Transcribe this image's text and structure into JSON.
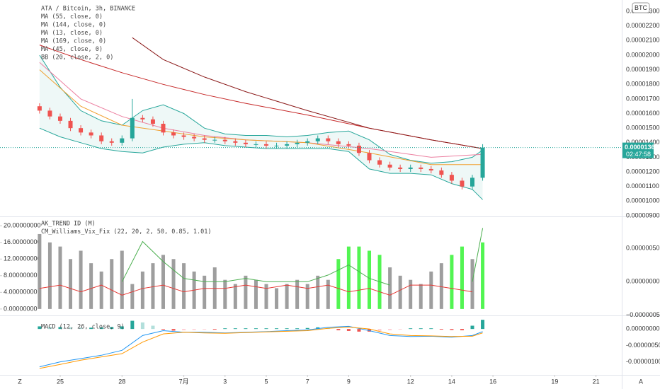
{
  "chart_data": [
    {
      "type": "candlestick",
      "legend": [
        "ATA / Bitcoin, 3h, BINANCE",
        "MA (55, close, 0)",
        "MA (144, close, 0)",
        "MA (13, close, 0)",
        "MA (169, close, 0)",
        "MA (45, close, 0)",
        "BB (20, close, 2, 0)"
      ],
      "currency": "BTC",
      "x": [
        -1,
        -0.5,
        0,
        0.5,
        1,
        1.5,
        2,
        2.5,
        3,
        3.5,
        4,
        4.5,
        5,
        5.5,
        6,
        6.5,
        7,
        7.5,
        8,
        8.5,
        9,
        9.5,
        10,
        10.5,
        11,
        11.5,
        12,
        12.5,
        13,
        13.5,
        14,
        14.5,
        15,
        15.5,
        16,
        16.5,
        17,
        17.5,
        18,
        18.5,
        19,
        19.5,
        20,
        20.5
      ],
      "open": [
        1.65e-05,
        1.62e-05,
        1.58e-05,
        1.55e-05,
        1.5e-05,
        1.47e-05,
        1.45e-05,
        1.41e-05,
        1.4e-05,
        1.43e-05,
        1.57e-05,
        1.56e-05,
        1.53e-05,
        1.47e-05,
        1.45e-05,
        1.44e-05,
        1.43e-05,
        1.42e-05,
        1.42e-05,
        1.41e-05,
        1.4e-05,
        1.39e-05,
        1.39e-05,
        1.38e-05,
        1.38e-05,
        1.39e-05,
        1.4e-05,
        1.41e-05,
        1.43e-05,
        1.41e-05,
        1.39e-05,
        1.38e-05,
        1.33e-05,
        1.28e-05,
        1.25e-05,
        1.23e-05,
        1.22e-05,
        1.23e-05,
        1.22e-05,
        1.21e-05,
        1.18e-05,
        1.14e-05,
        1.1e-05,
        1.16e-05
      ],
      "high": [
        1.67e-05,
        1.64e-05,
        1.6e-05,
        1.57e-05,
        1.52e-05,
        1.49e-05,
        1.47e-05,
        1.43e-05,
        1.45e-05,
        1.7e-05,
        1.59e-05,
        1.58e-05,
        1.55e-05,
        1.49e-05,
        1.47e-05,
        1.46e-05,
        1.45e-05,
        1.44e-05,
        1.44e-05,
        1.43e-05,
        1.42e-05,
        1.41e-05,
        1.41e-05,
        1.4e-05,
        1.41e-05,
        1.42e-05,
        1.43e-05,
        1.45e-05,
        1.45e-05,
        1.43e-05,
        1.41e-05,
        1.4e-05,
        1.35e-05,
        1.3e-05,
        1.27e-05,
        1.25e-05,
        1.25e-05,
        1.25e-05,
        1.24e-05,
        1.23e-05,
        1.2e-05,
        1.16e-05,
        1.18e-05,
        1.39e-05
      ],
      "low": [
        1.6e-05,
        1.56e-05,
        1.53e-05,
        1.48e-05,
        1.45e-05,
        1.43e-05,
        1.39e-05,
        1.38e-05,
        1.38e-05,
        1.41e-05,
        1.54e-05,
        1.51e-05,
        1.45e-05,
        1.43e-05,
        1.42e-05,
        1.41e-05,
        1.4e-05,
        1.4e-05,
        1.39e-05,
        1.38e-05,
        1.37e-05,
        1.37e-05,
        1.36e-05,
        1.36e-05,
        1.36e-05,
        1.37e-05,
        1.38e-05,
        1.39e-05,
        1.39e-05,
        1.37e-05,
        1.36e-05,
        1.31e-05,
        1.26e-05,
        1.23e-05,
        1.21e-05,
        1.2e-05,
        1.2e-05,
        1.2e-05,
        1.19e-05,
        1.16e-05,
        1.12e-05,
        1.08e-05,
        1.08e-05,
        1.14e-05
      ],
      "close": [
        1.62e-05,
        1.58e-05,
        1.55e-05,
        1.5e-05,
        1.47e-05,
        1.45e-05,
        1.41e-05,
        1.4e-05,
        1.43e-05,
        1.57e-05,
        1.56e-05,
        1.53e-05,
        1.47e-05,
        1.45e-05,
        1.44e-05,
        1.43e-05,
        1.42e-05,
        1.42e-05,
        1.41e-05,
        1.4e-05,
        1.39e-05,
        1.39e-05,
        1.38e-05,
        1.38e-05,
        1.39e-05,
        1.4e-05,
        1.41e-05,
        1.43e-05,
        1.41e-05,
        1.39e-05,
        1.38e-05,
        1.33e-05,
        1.28e-05,
        1.25e-05,
        1.23e-05,
        1.22e-05,
        1.23e-05,
        1.22e-05,
        1.21e-05,
        1.18e-05,
        1.14e-05,
        1.1e-05,
        1.16e-05,
        1.367e-05
      ],
      "up_color": "#26a69a",
      "down_color": "#ef5350",
      "lines": [
        {
          "color": "#c62828",
          "x": [
            -1,
            1,
            3,
            5,
            7,
            9,
            12,
            15,
            18,
            20.5
          ],
          "values": [
            2.07e-05,
            1.97e-05,
            1.88e-05,
            1.8e-05,
            1.73e-05,
            1.67e-05,
            1.59e-05,
            1.5e-05,
            1.42e-05,
            1.36e-05
          ]
        },
        {
          "color": "#8b1a1a",
          "x": [
            3.5,
            5,
            7,
            9,
            12,
            15,
            18,
            20.5
          ],
          "values": [
            2.12e-05,
            1.97e-05,
            1.85e-05,
            1.75e-05,
            1.62e-05,
            1.5e-05,
            1.42e-05,
            1.36e-05
          ]
        },
        {
          "color": "#ec7fa0",
          "x": [
            -1,
            1,
            3,
            5,
            7,
            9,
            12,
            15,
            18,
            20.5
          ],
          "values": [
            1.95e-05,
            1.7e-05,
            1.58e-05,
            1.5e-05,
            1.45e-05,
            1.42e-05,
            1.4e-05,
            1.36e-05,
            1.3e-05,
            1.32e-05
          ]
        },
        {
          "color": "#f0a030",
          "x": [
            -1,
            1,
            3,
            5,
            7,
            9,
            12,
            15,
            18,
            20.5
          ],
          "values": [
            1.9e-05,
            1.65e-05,
            1.52e-05,
            1.48e-05,
            1.44e-05,
            1.42e-05,
            1.4e-05,
            1.33e-05,
            1.25e-05,
            1.25e-05
          ]
        }
      ],
      "band": {
        "color": "#26a69a",
        "x": [
          -1,
          0,
          1,
          2,
          3,
          4,
          5,
          6,
          7,
          8,
          9,
          10,
          11,
          12,
          13,
          14,
          15,
          16,
          17,
          18,
          19,
          20,
          20.5
        ],
        "upper": [
          2e-05,
          1.78e-05,
          1.62e-05,
          1.55e-05,
          1.52e-05,
          1.62e-05,
          1.66e-05,
          1.6e-05,
          1.5e-05,
          1.46e-05,
          1.45e-05,
          1.45e-05,
          1.44e-05,
          1.45e-05,
          1.47e-05,
          1.48e-05,
          1.42e-05,
          1.32e-05,
          1.28e-05,
          1.26e-05,
          1.27e-05,
          1.3e-05,
          1.35e-05
        ],
        "lower": [
          1.5e-05,
          1.44e-05,
          1.4e-05,
          1.36e-05,
          1.34e-05,
          1.33e-05,
          1.37e-05,
          1.39e-05,
          1.4e-05,
          1.38e-05,
          1.37e-05,
          1.36e-05,
          1.36e-05,
          1.36e-05,
          1.36e-05,
          1.34e-05,
          1.22e-05,
          1.19e-05,
          1.19e-05,
          1.18e-05,
          1.12e-05,
          1.08e-05,
          1.01e-05
        ]
      },
      "last_price": {
        "value": 1.367e-05,
        "label": "0.00001367"
      },
      "countdown": "02:47:58",
      "xlim": [
        -2.92,
        27.25
      ],
      "xticks": [
        {
          "value": 0,
          "label": "25"
        },
        {
          "value": 3,
          "label": "28"
        },
        {
          "value": 6,
          "label": "7月"
        },
        {
          "value": 8,
          "label": "3"
        },
        {
          "value": 10,
          "label": "5"
        },
        {
          "value": 12,
          "label": "7"
        },
        {
          "value": 14,
          "label": "9"
        },
        {
          "value": 17,
          "label": "12"
        },
        {
          "value": 19,
          "label": "14"
        },
        {
          "value": 21,
          "label": "16"
        },
        {
          "value": 24,
          "label": "19"
        },
        {
          "value": 26,
          "label": "21"
        }
      ],
      "ylim": [
        8.95e-06,
        2.378e-05
      ],
      "yticks": [
        {
          "value": 9e-06,
          "label": "0.00000900"
        },
        {
          "value": 1e-05,
          "label": "0.00001000"
        },
        {
          "value": 1.1e-05,
          "label": "0.00001100"
        },
        {
          "value": 1.2e-05,
          "label": "0.00001200"
        },
        {
          "value": 1.3e-05,
          "label": "0.00001300"
        },
        {
          "value": 1.4e-05,
          "label": "0.00001400"
        },
        {
          "value": 1.5e-05,
          "label": "0.00001500"
        },
        {
          "value": 1.6e-05,
          "label": "0.00001600"
        },
        {
          "value": 1.7e-05,
          "label": "0.00001700"
        },
        {
          "value": 1.8e-05,
          "label": "0.00001800"
        },
        {
          "value": 1.9e-05,
          "label": "0.00001900"
        },
        {
          "value": 2e-05,
          "label": "0.00002000"
        },
        {
          "value": 2.1e-05,
          "label": "0.00002100"
        },
        {
          "value": 2.2e-05,
          "label": "0.00002200"
        },
        {
          "value": 2.3e-05,
          "label": "0.00002300"
        }
      ]
    },
    {
      "type": "bar",
      "legend": [
        "AK_TREND ID (M)",
        "CM_Williams_Vix_Fix (22, 20, 2, 50, 0.85, 1.01)"
      ],
      "x": [
        -1,
        -0.5,
        0,
        0.5,
        1,
        1.5,
        2,
        2.5,
        3,
        3.5,
        4,
        4.5,
        5,
        5.5,
        6,
        6.5,
        7,
        7.5,
        8,
        8.5,
        9,
        9.5,
        10,
        10.5,
        11,
        11.5,
        12,
        12.5,
        13,
        13.5,
        14,
        14.5,
        15,
        15.5,
        16,
        16.5,
        17,
        17.5,
        18,
        18.5,
        19,
        19.5,
        20,
        20.5
      ],
      "series": [
        {
          "color": "#9e9e9e",
          "values": [
            18,
            16,
            15,
            12,
            14,
            11,
            9,
            12,
            14,
            6,
            9,
            11,
            13,
            12,
            11,
            9,
            8,
            10,
            7,
            6,
            8,
            7,
            6,
            5,
            6,
            7,
            6,
            8,
            7,
            null,
            null,
            null,
            null,
            null,
            10,
            8,
            7,
            6,
            9,
            11,
            null,
            null,
            12,
            null
          ]
        },
        {
          "color": "#52f552",
          "values": [
            null,
            null,
            null,
            null,
            null,
            null,
            null,
            null,
            null,
            null,
            null,
            null,
            null,
            null,
            null,
            null,
            null,
            null,
            null,
            null,
            null,
            null,
            null,
            null,
            null,
            null,
            null,
            null,
            null,
            12,
            15,
            15,
            14,
            13,
            null,
            null,
            null,
            null,
            null,
            null,
            13,
            15,
            null,
            16
          ]
        }
      ],
      "lines": [
        {
          "color": "#e53935",
          "axis": "y2",
          "x": [
            -1,
            0,
            1,
            2,
            3,
            4,
            5,
            6,
            7,
            8,
            9,
            10,
            11,
            12,
            13,
            14,
            15,
            16,
            17,
            18,
            19,
            20,
            20.5
          ],
          "values": [
            -1e-07,
            -5e-08,
            -1.5e-07,
            -5e-08,
            -2e-07,
            -1e-07,
            -5e-08,
            -1.5e-07,
            -1e-07,
            -1e-07,
            -5e-08,
            -1e-07,
            -5e-08,
            -1e-07,
            -5e-08,
            -1.5e-07,
            -1e-07,
            -2e-07,
            -5e-08,
            -5e-08,
            -1e-07,
            -1.5e-07,
            null
          ]
        },
        {
          "color": "#4caf50",
          "axis": "y2",
          "x": [
            -1,
            0,
            1,
            2,
            3,
            4,
            5,
            6,
            7,
            8,
            9,
            10,
            11,
            12,
            13,
            14,
            15,
            16,
            17,
            18,
            19,
            20,
            20.5
          ],
          "values": [
            null,
            null,
            null,
            null,
            0,
            6e-07,
            3e-07,
            5e-08,
            0,
            0,
            5e-08,
            0,
            0,
            0,
            1e-07,
            2.5e-07,
            5e-08,
            -5e-08,
            null,
            null,
            null,
            0,
            8e-07
          ]
        }
      ],
      "ylim": [
        -0.7,
        21.9
      ],
      "yticks": [
        {
          "value": 0,
          "label": "0.00000000"
        },
        {
          "value": 4,
          "label": "4.00000000"
        },
        {
          "value": 8,
          "label": "8.00000000"
        },
        {
          "value": 12,
          "label": "12.00000000"
        },
        {
          "value": 16,
          "label": "16.00000000"
        },
        {
          "value": 20,
          "label": "20.00000000"
        }
      ],
      "y2lim": [
        -4.5e-07,
        9.53e-07
      ],
      "y2ticks": [
        {
          "value": 5e-07,
          "label": "0.00000050"
        },
        {
          "value": 0,
          "label": "0.00000000"
        },
        {
          "value": -5e-07,
          "label": "−0.00000050"
        }
      ]
    },
    {
      "type": "macd",
      "legend": [
        "MACD (12, 26, close, 9)"
      ],
      "x": [
        -1,
        -0.5,
        0,
        0.5,
        1,
        1.5,
        2,
        2.5,
        3,
        3.5,
        4,
        4.5,
        5,
        5.5,
        6,
        6.5,
        7,
        7.5,
        8,
        8.5,
        9,
        9.5,
        10,
        10.5,
        11,
        11.5,
        12,
        12.5,
        13,
        13.5,
        14,
        14.5,
        15,
        15.5,
        16,
        16.5,
        17,
        17.5,
        18,
        18.5,
        19,
        19.5,
        20,
        20.5
      ],
      "histogram": [
        8e-08,
        6e-08,
        6e-08,
        5e-08,
        4e-08,
        4e-08,
        5e-08,
        6e-08,
        8e-08,
        2.5e-07,
        2e-07,
        1e-07,
        -2e-08,
        -5e-08,
        -4e-08,
        -3e-08,
        -2e-08,
        -2e-08,
        2e-08,
        2e-08,
        2e-08,
        2e-08,
        2e-08,
        2e-08,
        2e-08,
        2e-08,
        3e-08,
        5e-08,
        3e-08,
        -4e-08,
        -6e-08,
        -8e-08,
        -8e-08,
        -6e-08,
        -4e-08,
        -2e-08,
        2e-08,
        2e-08,
        2e-08,
        -2e-08,
        -3e-08,
        -4e-08,
        1e-07,
        2.8e-07
      ],
      "lines": [
        {
          "color": "#2196f3",
          "x": [
            -1,
            0,
            1,
            2,
            3,
            4,
            5,
            6,
            7,
            8,
            9,
            10,
            11,
            12,
            13,
            14,
            15,
            16,
            17,
            18,
            19,
            20,
            20.5
          ],
          "values": [
            -1.15e-06,
            -1e-06,
            -9e-07,
            -8e-07,
            -6.5e-07,
            -2e-07,
            -5e-08,
            -1e-07,
            -1e-07,
            -1.2e-07,
            -1e-07,
            -8e-08,
            -5e-08,
            -3e-08,
            5e-08,
            8e-08,
            -5e-08,
            -2e-07,
            -2.3e-07,
            -2.2e-07,
            -2.5e-07,
            -2e-07,
            -8e-08
          ]
        },
        {
          "color": "#ff9800",
          "x": [
            -1,
            0,
            1,
            2,
            3,
            4,
            5,
            6,
            7,
            8,
            9,
            10,
            11,
            12,
            13,
            14,
            15,
            16,
            17,
            18,
            19,
            20,
            20.5
          ],
          "values": [
            -1.2e-06,
            -1.08e-06,
            -9.5e-07,
            -8.5e-07,
            -7.5e-07,
            -4e-07,
            -1.5e-07,
            -1e-07,
            -1.2e-07,
            -1.3e-07,
            -1.1e-07,
            -9e-08,
            -7e-08,
            -5e-08,
            2e-08,
            6e-08,
            0,
            -1.5e-07,
            -2e-07,
            -2.1e-07,
            -2.3e-07,
            -2.2e-07,
            -1.2e-07
          ]
        }
      ],
      "ylim": [
        -1.396e-06,
        2.83e-07
      ],
      "yticks": [
        {
          "value": 0,
          "label": "0.00000000"
        },
        {
          "value": -5e-07,
          "label": "-0.00000050"
        },
        {
          "value": -1e-06,
          "label": "-0.00000100"
        }
      ],
      "corner_labels": [
        "Z",
        "A"
      ]
    }
  ]
}
